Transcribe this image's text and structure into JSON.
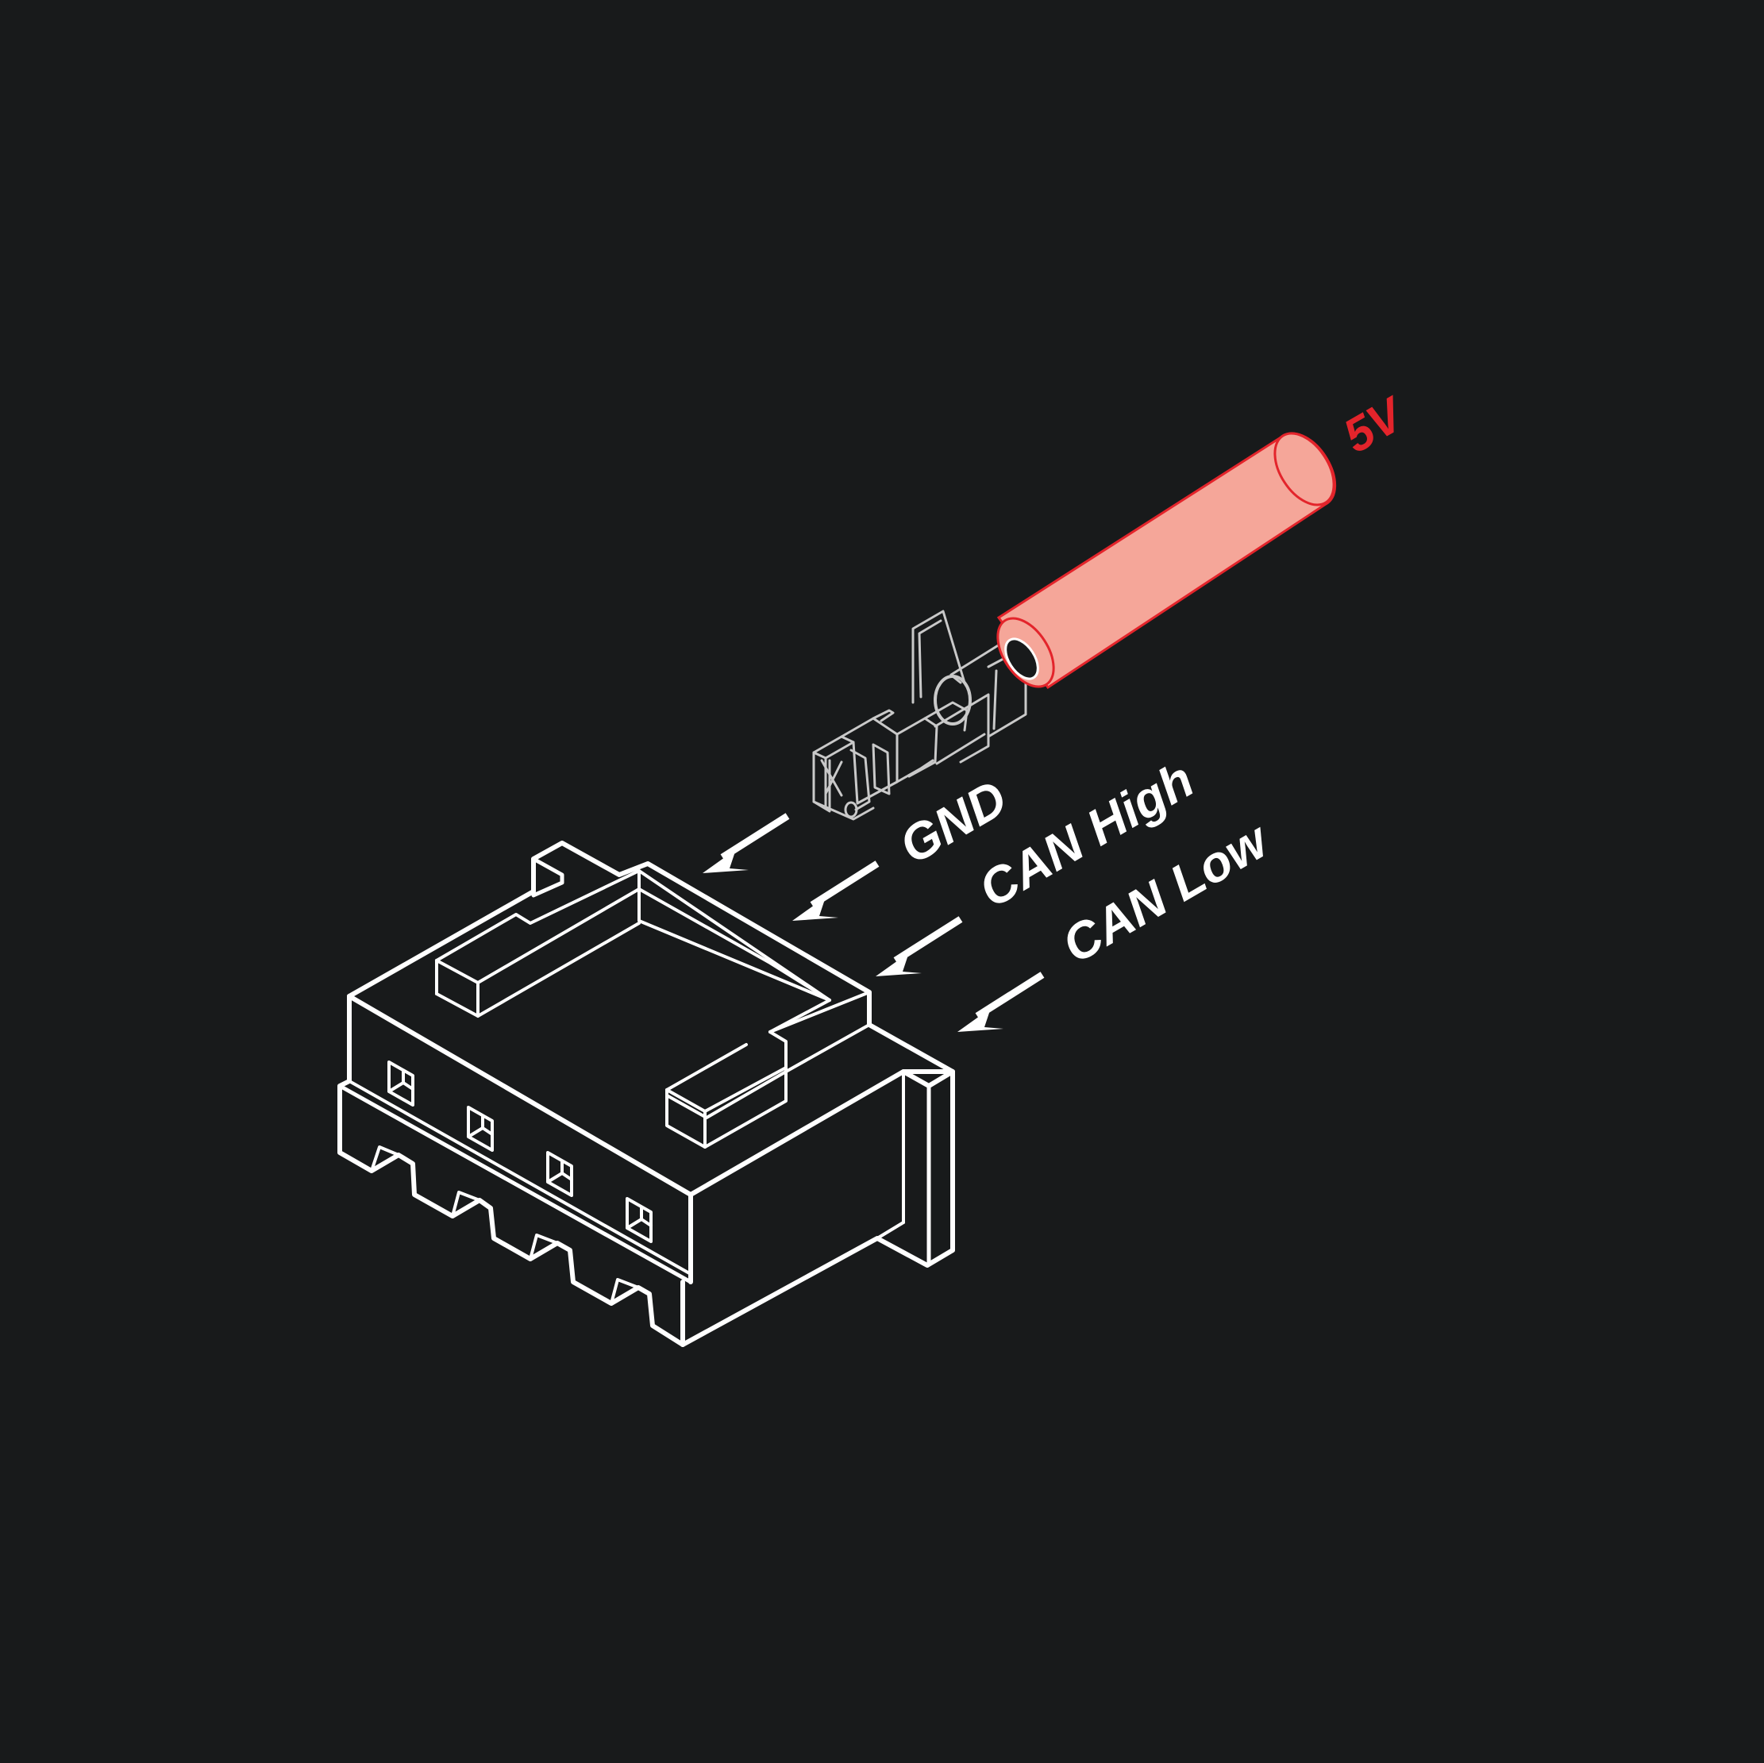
{
  "diagram": {
    "colors": {
      "background": "#181a1b",
      "outline": "#ffffff",
      "terminal_outline": "#c9c9c9",
      "wire_fill": "#f5a699",
      "wire_stroke": "#e3242b",
      "wire_label": "#e3242b",
      "label": "#ffffff"
    },
    "wire": {
      "label": "5V"
    },
    "pins": [
      {
        "label": "GND"
      },
      {
        "label": "CAN High"
      },
      {
        "label": "CAN Low"
      }
    ]
  }
}
